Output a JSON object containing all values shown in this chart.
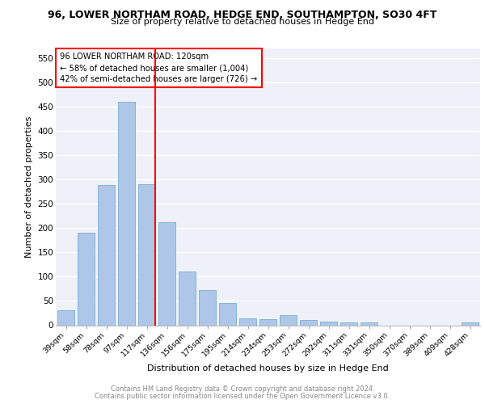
{
  "title1": "96, LOWER NORTHAM ROAD, HEDGE END, SOUTHAMPTON, SO30 4FT",
  "title2": "Size of property relative to detached houses in Hedge End",
  "xlabel": "Distribution of detached houses by size in Hedge End",
  "ylabel": "Number of detached properties",
  "categories": [
    "39sqm",
    "58sqm",
    "78sqm",
    "97sqm",
    "117sqm",
    "136sqm",
    "156sqm",
    "175sqm",
    "195sqm",
    "214sqm",
    "234sqm",
    "253sqm",
    "272sqm",
    "292sqm",
    "311sqm",
    "331sqm",
    "350sqm",
    "370sqm",
    "389sqm",
    "409sqm",
    "428sqm"
  ],
  "values": [
    30,
    190,
    288,
    460,
    291,
    213,
    111,
    73,
    46,
    14,
    13,
    20,
    10,
    7,
    5,
    5,
    0,
    0,
    0,
    0,
    5
  ],
  "bar_color": "#aec6e8",
  "bar_edge_color": "#7aaed0",
  "vline_color": "red",
  "vline_index": 4,
  "annotation_text": "96 LOWER NORTHAM ROAD: 120sqm\n← 58% of detached houses are smaller (1,004)\n42% of semi-detached houses are larger (726) →",
  "annotation_box_color": "white",
  "annotation_box_edge": "red",
  "ylim": [
    0,
    570
  ],
  "yticks": [
    0,
    50,
    100,
    150,
    200,
    250,
    300,
    350,
    400,
    450,
    500,
    550
  ],
  "footer1": "Contains HM Land Registry data © Crown copyright and database right 2024.",
  "footer2": "Contains public sector information licensed under the Open Government Licence v3.0.",
  "bg_color": "#eef2f8",
  "grid_color": "white",
  "fig_width": 6.0,
  "fig_height": 5.0,
  "fig_dpi": 100
}
